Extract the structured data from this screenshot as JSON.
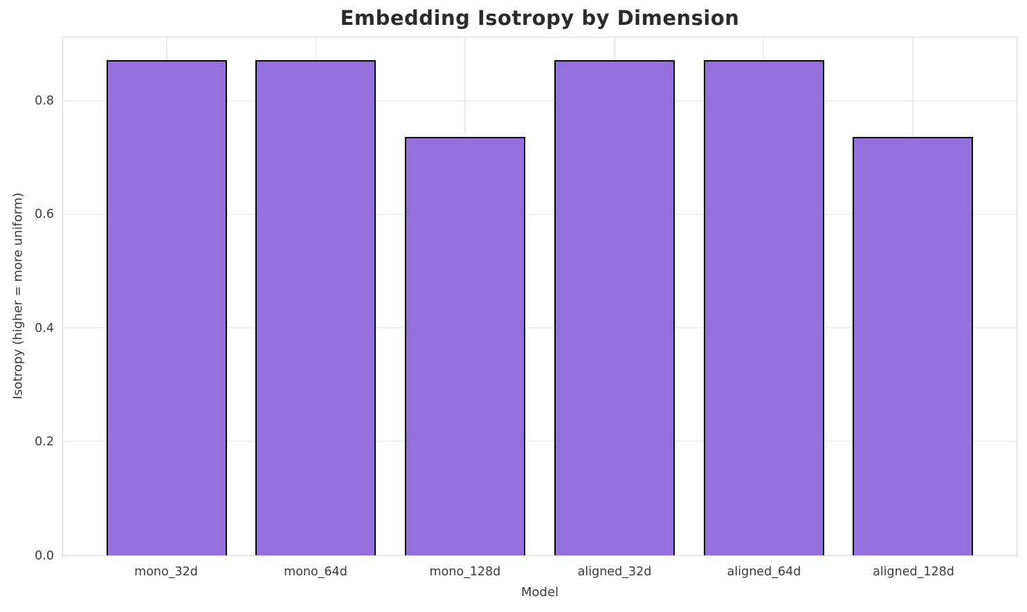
{
  "chart_data": {
    "type": "bar",
    "title": "Embedding Isotropy by Dimension",
    "xlabel": "Model",
    "ylabel": "Isotropy (higher = more uniform)",
    "categories": [
      "mono_32d",
      "mono_64d",
      "mono_128d",
      "aligned_32d",
      "aligned_64d",
      "aligned_128d"
    ],
    "values": [
      0.873,
      0.873,
      0.738,
      0.873,
      0.873,
      0.738
    ],
    "yticks": [
      0.0,
      0.2,
      0.4,
      0.6,
      0.8
    ],
    "ylim": [
      0,
      0.913
    ],
    "grid": true,
    "legend": "none",
    "colors": {
      "bar_fill": "#9370DB",
      "bar_edge": "#000000",
      "grid_h": "#efefef",
      "grid_v": "#e9e9e9",
      "spine": "#d5d5d5",
      "title_text": "#2b2b2b",
      "tick_text": "#3a3a3a"
    }
  }
}
